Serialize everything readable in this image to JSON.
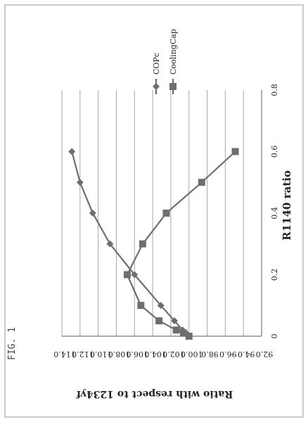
{
  "figure_label": "FIG. 1",
  "chart_data": {
    "type": "line",
    "title": "",
    "xlabel": "R1140 ratio",
    "ylabel": "Ratio with respect to 1234yf",
    "xlim": [
      0,
      0.8
    ],
    "ylim": [
      92.0,
      114.0
    ],
    "x_ticks": [
      "0",
      "0.2",
      "0.4",
      "0.6",
      "0.8"
    ],
    "y_ticks": [
      "92.0",
      "94.0",
      "96.0",
      "98.0",
      "100.0",
      "102.0",
      "104.0",
      "106.0",
      "108.0",
      "110.0",
      "112.0",
      "114.0"
    ],
    "grid": true,
    "orientation": "rotated 90° counter-clockwise",
    "legend_position": "right",
    "series": [
      {
        "name": "COPc",
        "marker": "diamond",
        "color": "#6e6e6e",
        "points": [
          [
            0,
            100.0
          ],
          [
            0.01,
            100.3
          ],
          [
            0.02,
            100.7
          ],
          [
            0.05,
            101.6
          ],
          [
            0.1,
            103.1
          ],
          [
            0.2,
            106.0
          ],
          [
            0.3,
            108.7
          ],
          [
            0.4,
            110.6
          ],
          [
            0.5,
            112.0
          ],
          [
            0.6,
            112.9
          ]
        ]
      },
      {
        "name": "CoolingCap",
        "marker": "square",
        "color": "#6e6e6e",
        "points": [
          [
            0,
            100.0
          ],
          [
            0.01,
            100.6
          ],
          [
            0.02,
            101.4
          ],
          [
            0.05,
            103.3
          ],
          [
            0.1,
            105.3
          ],
          [
            0.2,
            106.8
          ],
          [
            0.3,
            105.1
          ],
          [
            0.4,
            102.5
          ],
          [
            0.5,
            98.6
          ],
          [
            0.6,
            94.9
          ]
        ]
      }
    ]
  }
}
